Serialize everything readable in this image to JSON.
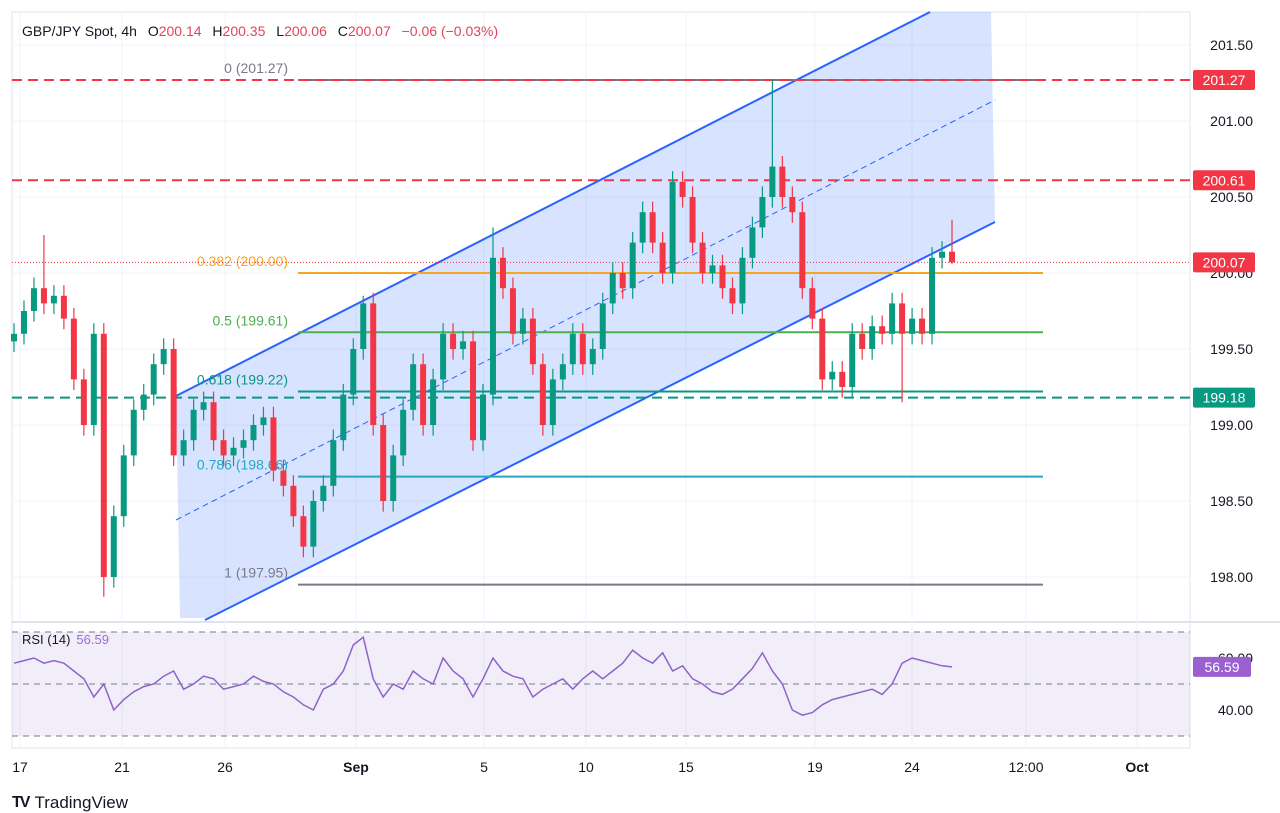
{
  "header": {
    "symbol": "GBP/JPY Spot, 4h",
    "open_label": "O",
    "open": "200.14",
    "high_label": "H",
    "high": "200.35",
    "low_label": "L",
    "low": "200.06",
    "close_label": "C",
    "close": "200.07",
    "change": "−0.06 (−0.03%)"
  },
  "rsi_legend": {
    "label": "RSI (14)",
    "value": "56.59"
  },
  "brand": "TradingView",
  "colors": {
    "up": "#089981",
    "down": "#f23645",
    "channel": "#2962ff",
    "rsi": "#8e63c9",
    "resistance": "#f23645",
    "support": "#089981"
  },
  "chart_data": [
    {
      "type": "candlestick",
      "title": "GBP/JPY Spot, 4h",
      "ylim": [
        197.75,
        201.6
      ],
      "y_ticks": [
        "201.50",
        "201.00",
        "200.50",
        "200.00",
        "199.50",
        "199.00",
        "198.50",
        "198.00"
      ],
      "x_ticks": [
        "17",
        "21",
        "26",
        "Sep",
        "5",
        "10",
        "15",
        "19",
        "24",
        "12:00",
        "Oct"
      ],
      "closes": [
        199.6,
        199.75,
        199.9,
        199.8,
        199.85,
        199.7,
        199.3,
        199.0,
        199.6,
        198.0,
        198.4,
        198.8,
        199.1,
        199.2,
        199.4,
        199.5,
        198.8,
        198.9,
        199.1,
        199.15,
        198.9,
        198.8,
        198.85,
        198.9,
        199.0,
        199.05,
        198.7,
        198.6,
        198.4,
        198.2,
        198.5,
        198.6,
        198.9,
        199.2,
        199.5,
        199.8,
        199.0,
        198.5,
        198.8,
        199.1,
        199.4,
        199.0,
        199.3,
        199.6,
        199.5,
        199.55,
        198.9,
        199.2,
        200.1,
        199.9,
        199.6,
        199.7,
        199.4,
        199.0,
        199.3,
        199.4,
        199.6,
        199.4,
        199.5,
        199.8,
        200.0,
        199.9,
        200.2,
        200.4,
        200.2,
        200.0,
        200.6,
        200.5,
        200.2,
        200.0,
        200.05,
        199.9,
        199.8,
        200.1,
        200.3,
        200.5,
        200.7,
        200.5,
        200.4,
        199.9,
        199.7,
        199.3,
        199.35,
        199.25,
        199.6,
        199.5,
        199.65,
        199.6,
        199.8,
        199.6,
        199.7,
        199.6,
        200.1,
        200.14,
        200.07
      ],
      "first_open": 199.55,
      "extremes": [
        {
          "i": 3,
          "h": 200.25
        },
        {
          "i": 9,
          "l": 197.87
        },
        {
          "i": 35,
          "h": 199.85
        },
        {
          "i": 48,
          "h": 200.3
        },
        {
          "i": 76,
          "h": 201.27
        },
        {
          "i": 89,
          "l": 199.15
        },
        {
          "i": 94,
          "h": 200.35,
          "l": 200.06
        }
      ],
      "horizontal_levels": [
        {
          "price": 201.27,
          "label": "201.27",
          "kind": "resistance",
          "color": "#f23645"
        },
        {
          "price": 200.61,
          "label": "200.61",
          "kind": "resistance",
          "color": "#f23645"
        },
        {
          "price": 199.18,
          "label": "199.18",
          "kind": "support",
          "color": "#089981"
        }
      ],
      "last_price": {
        "price": 200.07,
        "label": "200.07",
        "color": "#f23645"
      },
      "fibonacci": [
        {
          "label": "0 (201.27)",
          "price": 201.27,
          "color": "#787b86"
        },
        {
          "label": "0.382 (200.00)",
          "price": 200.0,
          "color": "#f5a623"
        },
        {
          "label": "0.5 (199.61)",
          "price": 199.61,
          "color": "#4caf50"
        },
        {
          "label": "0.618 (199.22)",
          "price": 199.22,
          "color": "#089981"
        },
        {
          "label": "0.786 (198.66)",
          "price": 198.66,
          "color": "#26a6c5"
        },
        {
          "label": "1 (197.95)",
          "price": 197.95,
          "color": "#787b86"
        }
      ],
      "channel": {
        "type": "ascending parallel channel",
        "color": "#2962ff",
        "midline": "dashed"
      }
    },
    {
      "type": "line",
      "title": "RSI (14)",
      "ylim": [
        30,
        70
      ],
      "levels": [
        70,
        50,
        30
      ],
      "y_ticks": [
        "60.00",
        "40.00"
      ],
      "last_value": "56.59",
      "values": [
        58,
        59,
        60,
        58,
        59,
        58,
        55,
        52,
        45,
        50,
        40,
        44,
        47,
        49,
        50,
        53,
        55,
        48,
        50,
        53,
        52,
        48,
        49,
        50,
        53,
        51,
        50,
        47,
        45,
        42,
        40,
        48,
        50,
        55,
        65,
        68,
        52,
        45,
        50,
        48,
        55,
        52,
        50,
        60,
        55,
        52,
        45,
        52,
        60,
        55,
        53,
        52,
        45,
        48,
        50,
        52,
        48,
        52,
        55,
        52,
        55,
        58,
        63,
        60,
        58,
        62,
        55,
        57,
        52,
        50,
        47,
        46,
        48,
        52,
        56,
        62,
        55,
        50,
        40,
        38,
        39,
        42,
        44,
        45,
        46,
        47,
        48,
        46,
        50,
        58,
        60,
        59,
        58,
        57,
        56.59
      ]
    }
  ]
}
